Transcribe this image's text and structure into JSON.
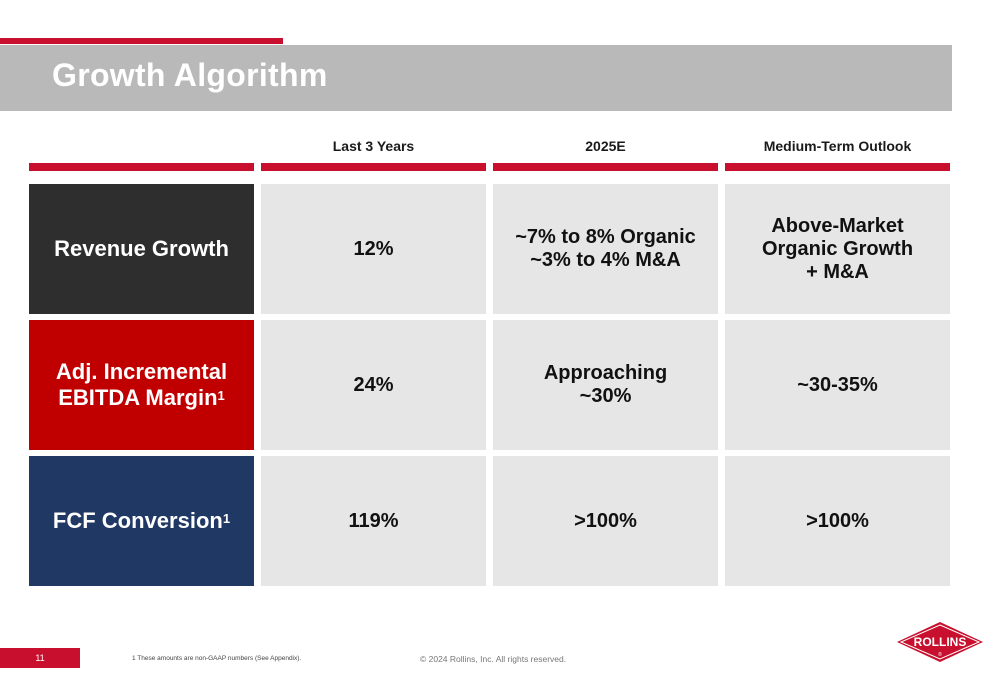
{
  "slide": {
    "title": "Growth Algorithm",
    "page_number": "11",
    "footnote": "1 These amounts are non-GAAP numbers (See Appendix).",
    "copyright": "© 2024 Rollins, Inc. All rights reserved.",
    "logo_text": "ROLLINS",
    "logo_mark": "®"
  },
  "columns": [
    "Last 3 Years",
    "2025E",
    "Medium-Term Outlook"
  ],
  "rows": [
    {
      "label_lines": [
        "Revenue Growth"
      ],
      "label_sup": "",
      "color": "#2e2e2e",
      "cells": [
        [
          "12%"
        ],
        [
          "~7% to 8% Organic",
          "~3% to 4% M&A"
        ],
        [
          "Above-Market",
          "Organic Growth",
          "+ M&A"
        ]
      ]
    },
    {
      "label_lines": [
        "Adj. Incremental",
        "EBITDA Margin"
      ],
      "label_sup": "1",
      "color": "#c00000",
      "cells": [
        [
          "24%"
        ],
        [
          "Approaching",
          "~30%"
        ],
        [
          "~30-35%"
        ]
      ]
    },
    {
      "label_lines": [
        "FCF Conversion"
      ],
      "label_sup": "1",
      "color": "#1f3864",
      "cells": [
        [
          "119%"
        ],
        [
          ">100%"
        ],
        [
          ">100%"
        ]
      ]
    }
  ],
  "colors": {
    "accent": "#c8102e",
    "title_band": "#b9b9b9",
    "cell_bg": "#e6e6e6"
  }
}
